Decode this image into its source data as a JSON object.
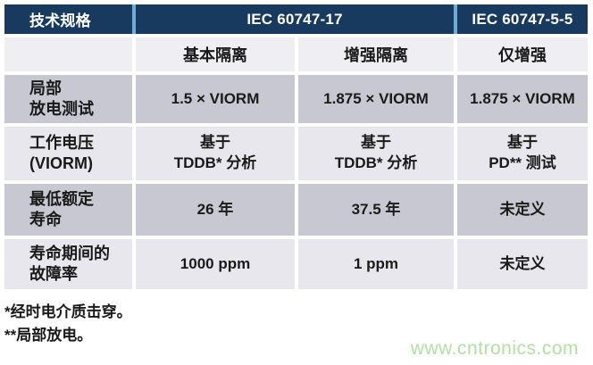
{
  "chart_data": {
    "type": "table",
    "header": {
      "spec_label": "技术规格",
      "group_iec_17": "IEC 60747-17",
      "group_iec_55": "IEC 60747-5-5"
    },
    "subheaders": [
      "基本隔离",
      "增强隔离",
      "仅增强"
    ],
    "rows": [
      {
        "label": "局部\n放电测试",
        "values": [
          "1.5 × VIORM",
          "1.875 × VIORM",
          "1.875 × VIORM"
        ]
      },
      {
        "label": "工作电压\n(VIORM)",
        "values": [
          "基于\nTDDB* 分析",
          "基于\nTDDB* 分析",
          "基于\nPD** 测试"
        ]
      },
      {
        "label": "最低额定\n寿命",
        "values": [
          "26 年",
          "37.5 年",
          "未定义"
        ]
      },
      {
        "label": "寿命期间的\n故障率",
        "values": [
          "1000 ppm",
          "1 ppm",
          "未定义"
        ]
      }
    ],
    "footnotes": [
      "*经时电介质击穿。",
      "**局部放电。"
    ],
    "watermark": "www.cntronics.com"
  },
  "colors": {
    "header_bg": "#173a5e",
    "header_separator": "#72aad2",
    "row_dark": "#c8c8d2",
    "row_light": "#e7e7ed",
    "subheader_bg": "#eeeef3",
    "text": "#1a1a1a",
    "watermark_green": "#b2dfa2"
  }
}
